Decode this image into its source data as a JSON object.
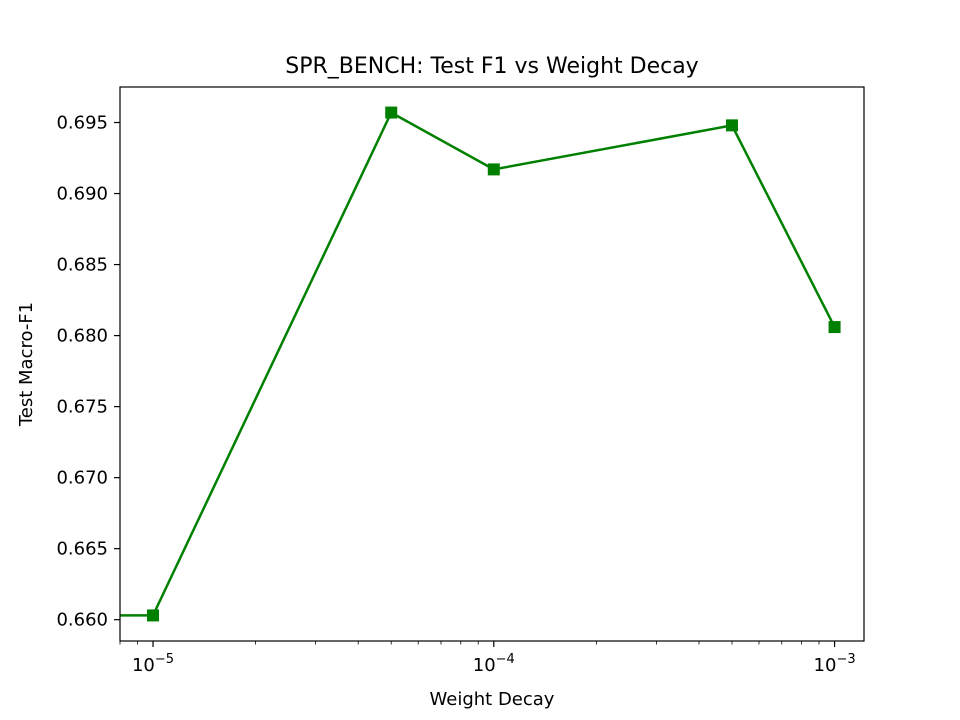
{
  "chart_data": {
    "type": "line",
    "title": "SPR_BENCH: Test F1 vs Weight Decay",
    "xlabel": "Weight Decay",
    "ylabel": "Test Macro-F1",
    "xscale": "log",
    "xlim": [
      8e-06,
      0.00122
    ],
    "ylim": [
      0.6585,
      0.6975
    ],
    "x_ticks": [
      {
        "value": 1e-05,
        "base": "10",
        "exp": "−5"
      },
      {
        "value": 0.0001,
        "base": "10",
        "exp": "−4"
      },
      {
        "value": 0.001,
        "base": "10",
        "exp": "−3"
      }
    ],
    "y_ticks": [
      "0.660",
      "0.665",
      "0.670",
      "0.675",
      "0.680",
      "0.685",
      "0.690",
      "0.695"
    ],
    "grid": false,
    "series": [
      {
        "color": "#008000",
        "marker": "square",
        "x": [
          0,
          1e-05,
          5e-05,
          0.0001,
          0.0005,
          0.001
        ],
        "y": [
          0.6603,
          0.6603,
          0.6957,
          0.6917,
          0.6948,
          0.6806
        ]
      }
    ]
  }
}
